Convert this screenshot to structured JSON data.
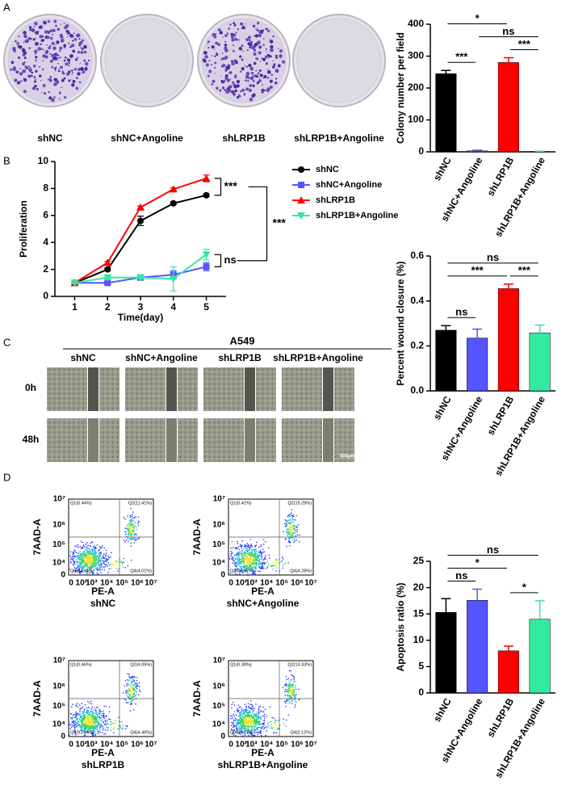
{
  "panel_labels": [
    "A",
    "B",
    "C",
    "D"
  ],
  "colony_images": {
    "labels": [
      "shNC",
      "shNC+Angoline",
      "shLRP1B",
      "shLRP1B+Angoline"
    ]
  },
  "wound_images": {
    "title": "A549",
    "columns": [
      "shNC",
      "shNC+Angoline",
      "shLRP1B",
      "shLRP1B+Angoline"
    ],
    "rows": [
      "0h",
      "48h"
    ],
    "scale_bar": "500μm"
  },
  "flow_plots": {
    "y_label": "7AAD-A",
    "x_label": "PE-A",
    "y_ticks": [
      "10⁷",
      "10⁶",
      "10⁵",
      "10⁴",
      "0"
    ],
    "x_ticks": [
      "0",
      "10²",
      "10³",
      "10⁴",
      "10⁵",
      "10⁶",
      "10⁷"
    ],
    "plots": [
      {
        "name": "shNC",
        "quadrants": [
          "Q1(0.44%)",
          "Q2(11.41%)",
          "Q3(84.14%)",
          "Q4(4.01%)"
        ]
      },
      {
        "name": "shNC+Angoline",
        "quadrants": [
          "Q1(0.41%)",
          "Q2(15.29%)",
          "Q3(80.02%)",
          "Q4(4.28%)"
        ]
      },
      {
        "name": "shLRP1B",
        "quadrants": [
          "Q1(0.46%)",
          "Q2(4.05%)",
          "Q3(91.04%)",
          "Q4(4.46%)"
        ]
      },
      {
        "name": "shLRP1B+Angoline",
        "quadrants": [
          "Q1(0.38%)",
          "Q2(13.33%)",
          "Q3(84.17%)",
          "Q4(2.12%)"
        ]
      }
    ]
  },
  "chart_data": [
    {
      "type": "bar",
      "y_label": "Colony number per field",
      "categories": [
        "shNC",
        "shNC+Angoline",
        "shLRP1B",
        "shLRP1B+Angoline"
      ],
      "values": [
        245,
        3,
        280,
        1
      ],
      "errors": [
        10,
        2,
        15,
        1
      ],
      "colors": [
        "#000000",
        "#5555ff",
        "#ff0000",
        "#33e8a0"
      ],
      "ylim": [
        0,
        400
      ],
      "yticks": [
        0,
        100,
        200,
        300,
        400
      ],
      "annotations": [
        {
          "label": "***",
          "pair": [
            "shNC",
            "shNC+Angoline"
          ]
        },
        {
          "label": "***",
          "pair": [
            "shLRP1B",
            "shLRP1B+Angoline"
          ]
        },
        {
          "label": "ns",
          "pair": [
            "shNC+Angoline",
            "shLRP1B+Angoline"
          ]
        },
        {
          "label": "*",
          "pair": [
            "shNC",
            "shLRP1B"
          ]
        }
      ]
    },
    {
      "type": "line",
      "x_label": "Time(day)",
      "y_label": "Proliferation",
      "x": [
        1,
        2,
        3,
        4,
        5
      ],
      "xlim": [
        0.4,
        5.6
      ],
      "xticks": [
        1,
        2,
        3,
        4,
        5
      ],
      "ylim": [
        0,
        10
      ],
      "yticks": [
        0,
        2,
        4,
        6,
        8,
        10
      ],
      "series": [
        {
          "name": "shNC",
          "color": "#000000",
          "marker": "circle",
          "values": [
            1,
            2,
            5.6,
            6.9,
            7.5
          ],
          "errors": [
            0.05,
            0.1,
            0.35,
            0.1,
            0.1
          ]
        },
        {
          "name": "shNC+Angoline",
          "color": "#5555ff",
          "marker": "square",
          "values": [
            1,
            1,
            1.4,
            1.6,
            2.2
          ],
          "errors": [
            0.05,
            0.1,
            0.1,
            0.3,
            0.3
          ]
        },
        {
          "name": "shLRP1B",
          "color": "#ff0000",
          "marker": "triangle-up",
          "values": [
            1,
            2.5,
            6.6,
            7.95,
            8.75
          ],
          "errors": [
            0.05,
            0.1,
            0.1,
            0.1,
            0.25
          ]
        },
        {
          "name": "shLRP1B+Angoline",
          "color": "#33e8a0",
          "marker": "triangle-down",
          "values": [
            1,
            1.4,
            1.4,
            1.3,
            3.1
          ],
          "errors": [
            0.05,
            0.1,
            0.1,
            0.9,
            0.4
          ]
        }
      ],
      "annotations": [
        "***",
        "ns",
        "***"
      ]
    },
    {
      "type": "bar",
      "y_label": "Percent wound closure (%)",
      "categories": [
        "shNC",
        "shNC+Angoline",
        "shLRP1B",
        "shLRP1B+Angoline"
      ],
      "values": [
        0.27,
        0.235,
        0.455,
        0.258
      ],
      "errors": [
        0.02,
        0.04,
        0.02,
        0.035
      ],
      "colors": [
        "#000000",
        "#5555ff",
        "#ff0000",
        "#33e8a0"
      ],
      "ylim": [
        0,
        0.6
      ],
      "yticks": [
        {
          "value": 0,
          "label": "0.0"
        },
        0.2,
        0.4,
        0.6
      ],
      "annotations": [
        {
          "label": "ns",
          "pair": [
            "shNC",
            "shNC+Angoline"
          ]
        },
        {
          "label": "***",
          "pair": [
            "shLRP1B",
            "shLRP1B+Angoline"
          ]
        },
        {
          "label": "***",
          "pair": [
            "shNC",
            "shLRP1B"
          ]
        },
        {
          "label": "ns",
          "pair": [
            "shNC",
            "shLRP1B+Angoline"
          ]
        }
      ]
    },
    {
      "type": "bar",
      "y_label": "Apoptosis ratio (%)",
      "categories": [
        "shNC",
        "shNC+Angoline",
        "shLRP1B",
        "shLRP1B+Angoline"
      ],
      "values": [
        15.3,
        17.6,
        8,
        14
      ],
      "errors": [
        2.6,
        2.1,
        0.9,
        3.5
      ],
      "colors": [
        "#000000",
        "#5555ff",
        "#ff0000",
        "#33e8a0"
      ],
      "ylim": [
        0,
        25
      ],
      "yticks": [
        0,
        5,
        10,
        15,
        20,
        25
      ],
      "annotations": [
        {
          "label": "ns",
          "pair": [
            "shNC",
            "shNC+Angoline"
          ]
        },
        {
          "label": "*",
          "pair": [
            "shLRP1B",
            "shLRP1B+Angoline"
          ]
        },
        {
          "label": "*",
          "pair": [
            "shNC",
            "shLRP1B"
          ]
        },
        {
          "label": "ns",
          "pair": [
            "shNC",
            "shLRP1B+Angoline"
          ]
        }
      ]
    }
  ]
}
